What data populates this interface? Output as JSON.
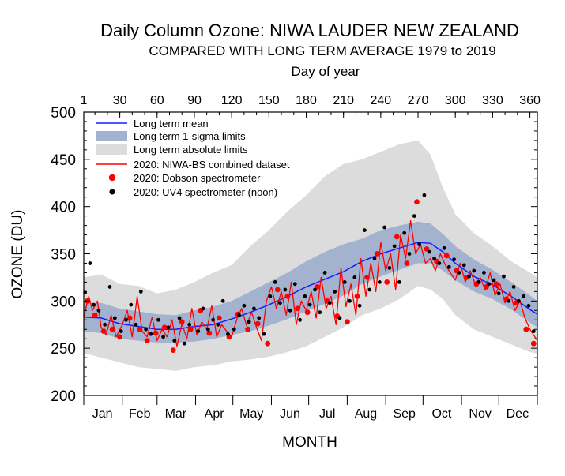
{
  "chart_data": {
    "type": "line",
    "title": "Daily Column Ozone: NIWA LAUDER NEW ZEALAND",
    "subtitle": "COMPARED WITH LONG TERM AVERAGE 1979 to 2019",
    "top_axis_label": "Day of year",
    "xlabel": "MONTH",
    "ylabel": "OZONE (DU)",
    "xlim": [
      1,
      366
    ],
    "ylim": [
      200,
      500
    ],
    "grid": false,
    "legend_position": "top-left",
    "top_ticks": [
      1,
      30,
      60,
      90,
      120,
      150,
      180,
      210,
      240,
      270,
      300,
      330,
      360
    ],
    "y_ticks": [
      200,
      250,
      300,
      350,
      400,
      450,
      500
    ],
    "months": [
      {
        "label": "Jan",
        "start": 1,
        "mid": 16
      },
      {
        "label": "Feb",
        "start": 32,
        "mid": 46
      },
      {
        "label": "Mar",
        "start": 60,
        "mid": 75
      },
      {
        "label": "Apr",
        "start": 91,
        "mid": 106
      },
      {
        "label": "May",
        "start": 121,
        "mid": 136
      },
      {
        "label": "Jun",
        "start": 152,
        "mid": 167
      },
      {
        "label": "Jul",
        "start": 182,
        "mid": 197
      },
      {
        "label": "Aug",
        "start": 213,
        "mid": 228
      },
      {
        "label": "Sep",
        "start": 244,
        "mid": 259
      },
      {
        "label": "Oct",
        "start": 274,
        "mid": 289
      },
      {
        "label": "Nov",
        "start": 305,
        "mid": 320
      },
      {
        "label": "Dec",
        "start": 335,
        "mid": 350
      }
    ],
    "colors": {
      "mean": "#1a1aff",
      "sigma": "#a3b3cf",
      "absolute": "#dcdcdc",
      "niwa": "#ff0000",
      "dobson": "#ff0000",
      "uv4": "#000000"
    },
    "legend": [
      {
        "key": "mean",
        "label": "Long term mean"
      },
      {
        "key": "sigma",
        "label": "Long term 1-sigma limits"
      },
      {
        "key": "absolute",
        "label": "Long term absolute limits"
      },
      {
        "key": "niwa",
        "label": "2020: NIWA-BS combined dataset"
      },
      {
        "key": "dobson",
        "label": "2020: Dobson spectrometer"
      },
      {
        "key": "uv4",
        "label": "2020: UV4 spectrometer (noon)"
      }
    ],
    "series": [
      {
        "name": "Long term mean",
        "x": [
          1,
          15,
          30,
          45,
          60,
          75,
          90,
          105,
          120,
          135,
          150,
          165,
          180,
          195,
          210,
          225,
          240,
          255,
          270,
          280,
          290,
          300,
          315,
          330,
          345,
          360,
          366
        ],
        "y": [
          283,
          282,
          276,
          273,
          270,
          270,
          273,
          275,
          281,
          288,
          296,
          305,
          315,
          323,
          331,
          342,
          350,
          356,
          362,
          361,
          352,
          340,
          326,
          317,
          305,
          291,
          286
        ]
      },
      {
        "name": "Long term 1-sigma limits",
        "x": [
          1,
          15,
          30,
          45,
          60,
          75,
          90,
          105,
          120,
          135,
          150,
          165,
          180,
          195,
          210,
          225,
          240,
          255,
          270,
          280,
          290,
          300,
          315,
          330,
          345,
          360,
          366
        ],
        "lower": [
          268,
          266,
          260,
          258,
          256,
          256,
          257,
          260,
          264,
          268,
          274,
          281,
          289,
          297,
          306,
          318,
          326,
          333,
          340,
          340,
          332,
          322,
          310,
          302,
          291,
          277,
          272
        ],
        "upper": [
          298,
          298,
          292,
          289,
          286,
          285,
          290,
          294,
          300,
          310,
          320,
          330,
          342,
          352,
          360,
          366,
          375,
          380,
          384,
          382,
          371,
          358,
          344,
          333,
          320,
          306,
          300
        ]
      },
      {
        "name": "Long term absolute limits",
        "x": [
          1,
          15,
          30,
          45,
          60,
          75,
          90,
          105,
          120,
          135,
          150,
          165,
          180,
          195,
          210,
          225,
          240,
          255,
          270,
          280,
          290,
          300,
          315,
          330,
          345,
          360,
          366
        ],
        "lower": [
          245,
          240,
          235,
          230,
          228,
          226,
          230,
          232,
          236,
          238,
          241,
          246,
          252,
          262,
          272,
          285,
          292,
          302,
          316,
          312,
          302,
          285,
          270,
          262,
          254,
          246,
          244
        ],
        "upper": [
          325,
          328,
          318,
          316,
          308,
          312,
          320,
          330,
          338,
          358,
          375,
          395,
          412,
          432,
          445,
          450,
          458,
          466,
          470,
          455,
          420,
          392,
          372,
          358,
          342,
          330,
          325
        ]
      },
      {
        "name": "2020: NIWA-BS combined dataset",
        "x": [
          1,
          5,
          8,
          12,
          15,
          19,
          23,
          27,
          32,
          36,
          40,
          44,
          48,
          52,
          56,
          60,
          64,
          68,
          72,
          76,
          80,
          84,
          88,
          92,
          96,
          100,
          104,
          108,
          112,
          116,
          120,
          124,
          128,
          132,
          136,
          140,
          144,
          148,
          152,
          156,
          160,
          164,
          168,
          172,
          176,
          180,
          184,
          188,
          192,
          196,
          200,
          204,
          208,
          212,
          216,
          220,
          224,
          228,
          232,
          236,
          240,
          244,
          248,
          252,
          256,
          260,
          264,
          268,
          272,
          276,
          280,
          284,
          288,
          292,
          296,
          300,
          304,
          308,
          312,
          316,
          320,
          324,
          328,
          332,
          336,
          340,
          344,
          348,
          352,
          356,
          360,
          364,
          366
        ],
        "y": [
          283,
          305,
          290,
          300,
          272,
          264,
          285,
          262,
          275,
          290,
          262,
          305,
          268,
          262,
          283,
          258,
          270,
          262,
          280,
          252,
          276,
          260,
          292,
          264,
          278,
          270,
          295,
          262,
          275,
          268,
          262,
          280,
          292,
          274,
          288,
          272,
          258,
          300,
          315,
          292,
          310,
          285,
          320,
          275,
          300,
          290,
          310,
          282,
          325,
          292,
          305,
          275,
          335,
          294,
          318,
          285,
          345,
          305,
          340,
          310,
          362,
          332,
          350,
          312,
          370,
          345,
          385,
          350,
          360,
          340,
          345,
          332,
          350,
          338,
          330,
          322,
          340,
          320,
          332,
          318,
          325,
          312,
          330,
          306,
          318,
          298,
          310,
          290,
          300,
          282,
          270,
          262,
          258
        ]
      },
      {
        "name": "2020: Dobson spectrometer",
        "x": [
          4,
          10,
          17,
          24,
          30,
          38,
          46,
          52,
          59,
          66,
          73,
          80,
          87,
          95,
          102,
          110,
          118,
          125,
          133,
          141,
          149,
          157,
          165,
          173,
          181,
          189,
          197,
          205,
          213,
          221,
          229,
          237,
          245,
          253,
          261,
          269,
          277,
          285,
          293,
          301,
          309,
          317,
          325,
          333,
          341,
          349,
          357,
          363
        ],
        "y": [
          300,
          285,
          268,
          270,
          262,
          282,
          270,
          258,
          266,
          272,
          248,
          278,
          270,
          290,
          266,
          282,
          262,
          286,
          270,
          276,
          255,
          312,
          305,
          292,
          288,
          315,
          300,
          284,
          278,
          305,
          325,
          350,
          320,
          368,
          340,
          405,
          355,
          342,
          348,
          332,
          325,
          318,
          315,
          318,
          302,
          298,
          270,
          255
        ]
      },
      {
        "name": "2020: UV4 spectrometer (noon)",
        "x": [
          2,
          6,
          9,
          13,
          18,
          22,
          26,
          31,
          35,
          39,
          43,
          47,
          51,
          55,
          61,
          65,
          69,
          74,
          78,
          82,
          86,
          93,
          97,
          101,
          105,
          109,
          113,
          117,
          122,
          126,
          130,
          134,
          138,
          142,
          146,
          151,
          155,
          159,
          163,
          167,
          171,
          175,
          179,
          183,
          187,
          191,
          195,
          199,
          203,
          207,
          211,
          215,
          219,
          223,
          227,
          231,
          235,
          239,
          243,
          247,
          251,
          255,
          259,
          263,
          267,
          271,
          275,
          279,
          283,
          287,
          291,
          295,
          299,
          303,
          307,
          311,
          315,
          319,
          323,
          327,
          331,
          335,
          339,
          343,
          347,
          351,
          355,
          359,
          363
        ],
        "y": [
          309,
          340,
          296,
          290,
          275,
          315,
          282,
          268,
          280,
          296,
          275,
          310,
          270,
          265,
          280,
          262,
          272,
          258,
          282,
          255,
          275,
          268,
          292,
          270,
          280,
          275,
          300,
          265,
          270,
          285,
          295,
          278,
          292,
          282,
          265,
          305,
          320,
          298,
          312,
          290,
          318,
          280,
          305,
          296,
          312,
          288,
          330,
          298,
          310,
          282,
          320,
          300,
          325,
          295,
          375,
          312,
          345,
          320,
          378,
          335,
          358,
          320,
          372,
          350,
          390,
          360,
          412,
          352,
          345,
          340,
          356,
          336,
          344,
          330,
          338,
          326,
          332,
          320,
          330,
          318,
          322,
          308,
          326,
          300,
          315,
          300,
          305,
          295,
          268
        ]
      }
    ]
  }
}
